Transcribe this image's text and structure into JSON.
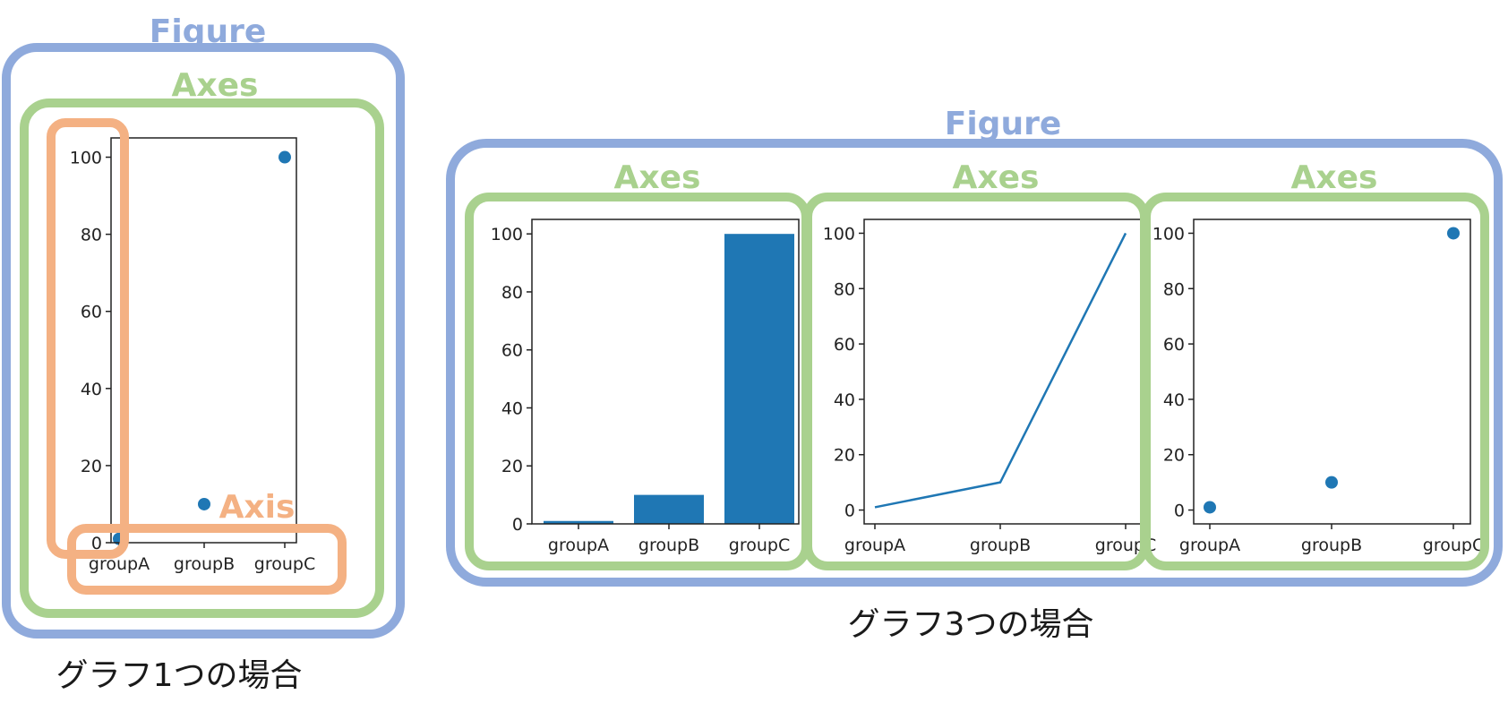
{
  "colors": {
    "figure": "#8faadc",
    "axes": "#a9d18e",
    "axis": "#f4b183",
    "series": "#1f77b4"
  },
  "left_diagram": {
    "figure_label": "Figure",
    "axes_label": "Axes",
    "axis_label": "Axis",
    "caption": "グラフ1つの場合"
  },
  "right_diagram": {
    "figure_label": "Figure",
    "axes_labels": [
      "Axes",
      "Axes",
      "Axes"
    ],
    "caption": "グラフ3つの場合"
  },
  "chart_data": [
    {
      "type": "scatter",
      "categories": [
        "groupA",
        "groupB",
        "groupC"
      ],
      "values": [
        1,
        10,
        100
      ],
      "ylim": [
        0,
        105
      ],
      "yticks": [
        "0",
        "20",
        "40",
        "60",
        "80",
        "100"
      ]
    },
    {
      "type": "bar",
      "categories": [
        "groupA",
        "groupB",
        "groupC"
      ],
      "values": [
        1,
        10,
        100
      ],
      "ylim": [
        0,
        105
      ],
      "yticks": [
        "0",
        "20",
        "40",
        "60",
        "80",
        "100"
      ]
    },
    {
      "type": "line",
      "categories": [
        "groupA",
        "groupB",
        "groupC"
      ],
      "values": [
        1,
        10,
        100
      ],
      "ylim": [
        -5,
        105
      ],
      "yticks": [
        "0",
        "20",
        "40",
        "60",
        "80",
        "100"
      ]
    },
    {
      "type": "scatter",
      "categories": [
        "groupA",
        "groupB",
        "groupC"
      ],
      "values": [
        1,
        10,
        100
      ],
      "ylim": [
        -5,
        105
      ],
      "yticks": [
        "0",
        "20",
        "40",
        "60",
        "80",
        "100"
      ]
    }
  ]
}
